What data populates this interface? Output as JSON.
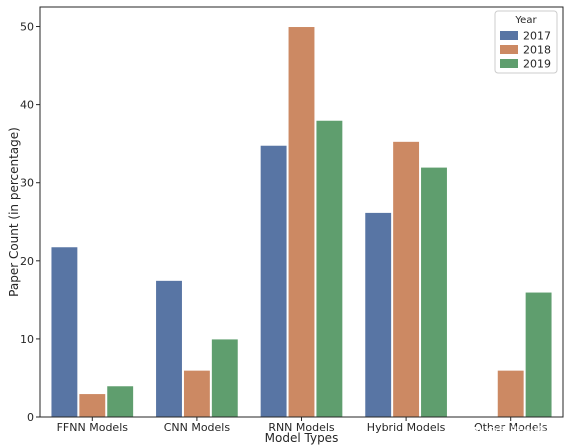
{
  "chart_data": {
    "type": "bar",
    "title": "",
    "xlabel": "Model Types",
    "ylabel": "Paper Count (in percentage)",
    "categories": [
      "FFNN Models",
      "CNN Models",
      "RNN Models",
      "Hybrid Models",
      "Other Models"
    ],
    "series": [
      {
        "name": "2017",
        "color": "#5875a4",
        "values": [
          21.8,
          17.5,
          34.8,
          26.2,
          0
        ]
      },
      {
        "name": "2018",
        "color": "#cc8963",
        "values": [
          3,
          6,
          50,
          35.3,
          6
        ]
      },
      {
        "name": "2019",
        "color": "#5f9e6e",
        "values": [
          4,
          10,
          38,
          32,
          16
        ]
      }
    ],
    "ylim": [
      0,
      52.5
    ],
    "yticks": [
      0,
      10,
      20,
      30,
      40,
      50
    ],
    "legend": {
      "title": "Year",
      "position": "top-right"
    },
    "grid": false
  },
  "watermark": "CSDN @咒咒大魔王"
}
